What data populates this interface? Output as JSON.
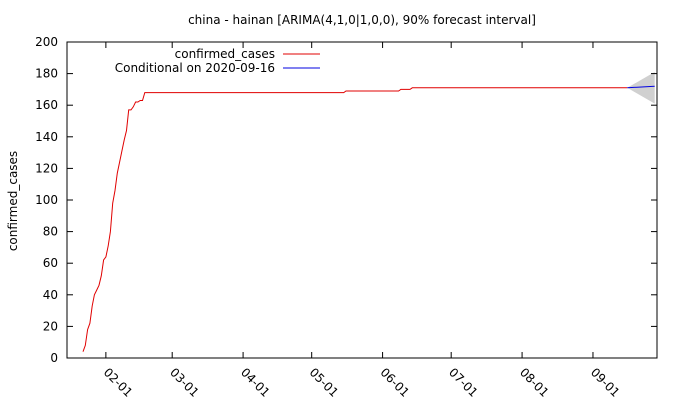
{
  "chart_data": {
    "type": "line",
    "title": "china - hainan [ARIMA(4,1,0|1,0,0), 90% forecast interval]",
    "xlabel": "",
    "ylabel": "confirmed_cases",
    "ylim": [
      0,
      200
    ],
    "xlim": [
      "2020-01-15",
      "2020-09-29"
    ],
    "yticks": [
      "0",
      "20",
      "40",
      "60",
      "80",
      "100",
      "120",
      "140",
      "160",
      "180",
      "200"
    ],
    "xticks": [
      {
        "date": "2020-02-01",
        "label": "02-01"
      },
      {
        "date": "2020-03-01",
        "label": "03-01"
      },
      {
        "date": "2020-04-01",
        "label": "04-01"
      },
      {
        "date": "2020-05-01",
        "label": "05-01"
      },
      {
        "date": "2020-06-01",
        "label": "06-01"
      },
      {
        "date": "2020-07-01",
        "label": "07-01"
      },
      {
        "date": "2020-08-01",
        "label": "08-01"
      },
      {
        "date": "2020-09-01",
        "label": "09-01"
      }
    ],
    "grid": false,
    "legend_position": "top-left",
    "series": [
      {
        "name": "confirmed_cases",
        "color": "#e00000",
        "points": [
          [
            "2020-01-22",
            4
          ],
          [
            "2020-01-23",
            8
          ],
          [
            "2020-01-24",
            18
          ],
          [
            "2020-01-25",
            22
          ],
          [
            "2020-01-26",
            33
          ],
          [
            "2020-01-27",
            40
          ],
          [
            "2020-01-28",
            43
          ],
          [
            "2020-01-29",
            46
          ],
          [
            "2020-01-30",
            52
          ],
          [
            "2020-01-31",
            62
          ],
          [
            "2020-02-01",
            64
          ],
          [
            "2020-02-02",
            71
          ],
          [
            "2020-02-03",
            80
          ],
          [
            "2020-02-04",
            98
          ],
          [
            "2020-02-05",
            106
          ],
          [
            "2020-02-06",
            117
          ],
          [
            "2020-02-07",
            124
          ],
          [
            "2020-02-08",
            131
          ],
          [
            "2020-02-09",
            138
          ],
          [
            "2020-02-10",
            144
          ],
          [
            "2020-02-11",
            157
          ],
          [
            "2020-02-12",
            157
          ],
          [
            "2020-02-13",
            159
          ],
          [
            "2020-02-14",
            162
          ],
          [
            "2020-02-15",
            162
          ],
          [
            "2020-02-16",
            163
          ],
          [
            "2020-02-17",
            163
          ],
          [
            "2020-02-18",
            168
          ],
          [
            "2020-05-15",
            168
          ],
          [
            "2020-05-16",
            169
          ],
          [
            "2020-06-08",
            169
          ],
          [
            "2020-06-09",
            170
          ],
          [
            "2020-06-13",
            170
          ],
          [
            "2020-06-14",
            171
          ],
          [
            "2020-09-16",
            171
          ]
        ]
      },
      {
        "name": "Conditional on 2020-09-16",
        "color": "#0000e0",
        "points": [
          [
            "2020-09-16",
            171
          ],
          [
            "2020-09-28",
            172
          ]
        ]
      }
    ],
    "forecast_interval": {
      "level": "90%",
      "color": "#d0d0d0",
      "upper": [
        [
          "2020-09-16",
          171
        ],
        [
          "2020-09-28",
          181
        ]
      ],
      "lower": [
        [
          "2020-09-16",
          171
        ],
        [
          "2020-09-28",
          161
        ]
      ]
    }
  }
}
